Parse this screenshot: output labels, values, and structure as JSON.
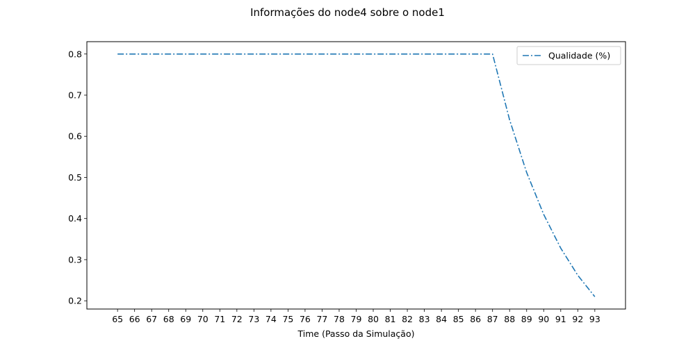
{
  "chart_data": {
    "type": "line",
    "title": "Informações do node4 sobre o node1",
    "xlabel": "Time (Passo da Simulação)",
    "ylabel": "",
    "x": [
      65,
      66,
      67,
      68,
      69,
      70,
      71,
      72,
      73,
      74,
      75,
      76,
      77,
      78,
      79,
      80,
      81,
      82,
      83,
      84,
      85,
      86,
      87,
      88,
      89,
      90,
      91,
      92,
      93
    ],
    "xlim": [
      63.2,
      94.8
    ],
    "ylim": [
      0.18,
      0.83
    ],
    "yticks": [
      0.2,
      0.3,
      0.4,
      0.5,
      0.6,
      0.7,
      0.8
    ],
    "ytick_labels": [
      "0.2",
      "0.3",
      "0.4",
      "0.5",
      "0.6",
      "0.7",
      "0.8"
    ],
    "grid": false,
    "legend": {
      "position": "top-right"
    },
    "series": [
      {
        "name": "Qualidade (%)",
        "color": "#1f77b4",
        "linestyle": "dashdot",
        "values": [
          0.8,
          0.8,
          0.8,
          0.8,
          0.8,
          0.8,
          0.8,
          0.8,
          0.8,
          0.8,
          0.8,
          0.8,
          0.8,
          0.8,
          0.8,
          0.8,
          0.8,
          0.8,
          0.8,
          0.8,
          0.8,
          0.8,
          0.8,
          0.64,
          0.512,
          0.41,
          0.328,
          0.262,
          0.21
        ]
      }
    ]
  }
}
